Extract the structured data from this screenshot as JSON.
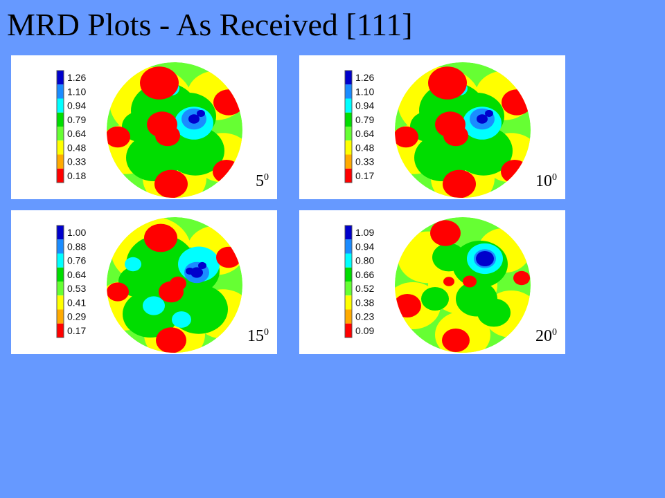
{
  "slide": {
    "title": "MRD Plots - As Received [111]"
  },
  "chart_data": [
    {
      "type": "heatmap",
      "plot": "pole-figure",
      "angle": "5",
      "angle_sup": "0",
      "colorbar_ticks": [
        "1.26",
        "1.10",
        "0.94",
        "0.79",
        "0.64",
        "0.48",
        "0.33",
        "0.18"
      ],
      "range": [
        0.18,
        1.26
      ],
      "pattern": "A"
    },
    {
      "type": "heatmap",
      "plot": "pole-figure",
      "angle": "10",
      "angle_sup": "0",
      "colorbar_ticks": [
        "1.26",
        "1.10",
        "0.94",
        "0.79",
        "0.64",
        "0.48",
        "0.33",
        "0.17"
      ],
      "range": [
        0.17,
        1.26
      ],
      "pattern": "A"
    },
    {
      "type": "heatmap",
      "plot": "pole-figure",
      "angle": "15",
      "angle_sup": "0",
      "colorbar_ticks": [
        "1.00",
        "0.88",
        "0.76",
        "0.64",
        "0.53",
        "0.41",
        "0.29",
        "0.17"
      ],
      "range": [
        0.17,
        1.0
      ],
      "pattern": "B"
    },
    {
      "type": "heatmap",
      "plot": "pole-figure",
      "angle": "20",
      "angle_sup": "0",
      "colorbar_ticks": [
        "1.09",
        "0.94",
        "0.80",
        "0.66",
        "0.52",
        "0.38",
        "0.23",
        "0.09"
      ],
      "range": [
        0.09,
        1.09
      ],
      "pattern": "C"
    }
  ],
  "colors": {
    "scale": [
      "#0000cc",
      "#1a8cff",
      "#00ffff",
      "#00dd00",
      "#66ff33",
      "#ffff00",
      "#ffaa00",
      "#ff0000"
    ],
    "background": "#6699ff",
    "panel": "#ffffff"
  }
}
